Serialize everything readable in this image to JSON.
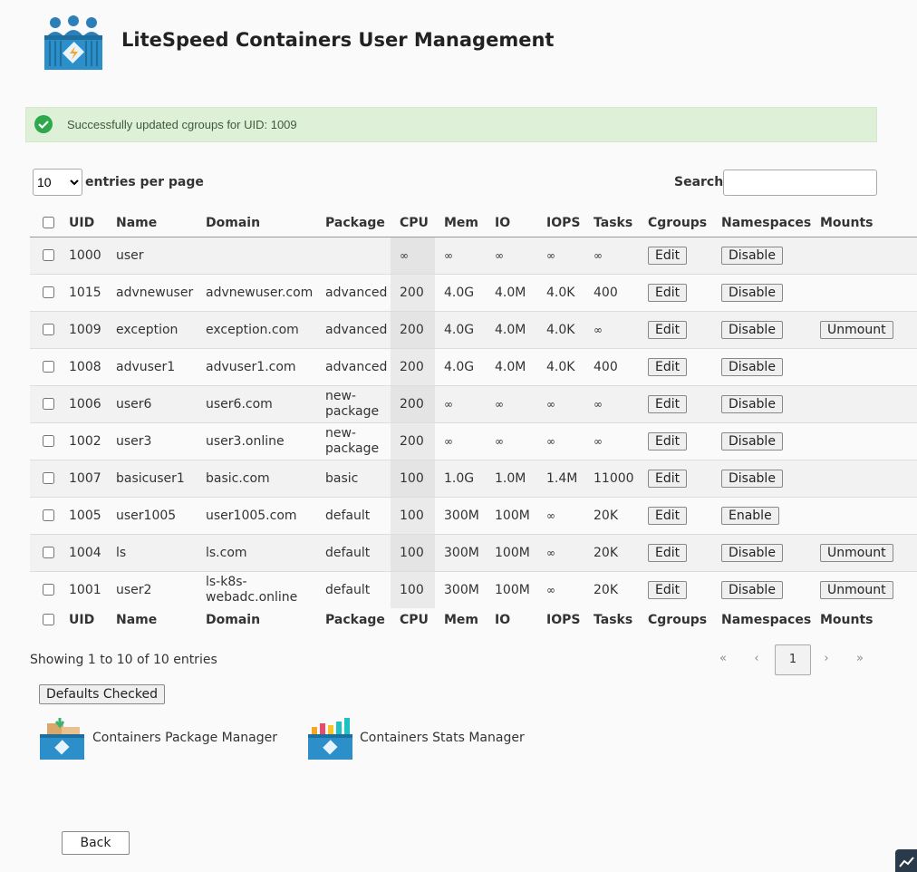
{
  "header": {
    "title": "LiteSpeed Containers User Management"
  },
  "alert": {
    "message": "Successfully updated cgroups for UID: 1009"
  },
  "controls": {
    "page_length": "10",
    "entries_label": "entries per page",
    "search_label": "Search:"
  },
  "table": {
    "columns": [
      "UID",
      "Name",
      "Domain",
      "Package",
      "CPU",
      "Mem",
      "IO",
      "IOPS",
      "Tasks",
      "Cgroups",
      "Namespaces",
      "Mounts"
    ],
    "rows": [
      {
        "uid": 1000,
        "name": "user",
        "cpu": "∞",
        "mem": "∞",
        "io": "∞",
        "iops": "∞",
        "tasks": "∞",
        "cgroups": "Edit",
        "namespaces": "Disable"
      },
      {
        "uid": 1015,
        "name": "advnewuser",
        "domain": "advnewuser.com",
        "package": "advanced",
        "cpu": 200,
        "mem": "4.0G",
        "io": "4.0M",
        "iops": "4.0K",
        "tasks": 400,
        "cgroups": "Edit",
        "namespaces": "Disable"
      },
      {
        "uid": 1009,
        "name": "exception",
        "domain": "exception.com",
        "package": "advanced",
        "cpu": 200,
        "mem": "4.0G",
        "io": "4.0M",
        "iops": "4.0K",
        "tasks": "∞",
        "cgroups": "Edit",
        "namespaces": "Disable",
        "mounts": "Unmount"
      },
      {
        "uid": 1008,
        "name": "advuser1",
        "domain": "advuser1.com",
        "package": "advanced",
        "cpu": 200,
        "mem": "4.0G",
        "io": "4.0M",
        "iops": "4.0K",
        "tasks": 400,
        "cgroups": "Edit",
        "namespaces": "Disable"
      },
      {
        "uid": 1006,
        "name": "user6",
        "domain": "user6.com",
        "package": "new-package",
        "cpu": 200,
        "mem": "∞",
        "io": "∞",
        "iops": "∞",
        "tasks": "∞",
        "cgroups": "Edit",
        "namespaces": "Disable"
      },
      {
        "uid": 1002,
        "name": "user3",
        "domain": "user3.online",
        "package": "new-package",
        "cpu": 200,
        "mem": "∞",
        "io": "∞",
        "iops": "∞",
        "tasks": "∞",
        "cgroups": "Edit",
        "namespaces": "Disable"
      },
      {
        "uid": 1007,
        "name": "basicuser1",
        "domain": "basic.com",
        "package": "basic",
        "cpu": 100,
        "mem": "1.0G",
        "io": "1.0M",
        "iops": "1.4M",
        "tasks": 11000,
        "cgroups": "Edit",
        "namespaces": "Disable"
      },
      {
        "uid": 1005,
        "name": "user1005",
        "domain": "user1005.com",
        "package": "default",
        "cpu": 100,
        "mem": "300M",
        "io": "100M",
        "iops": "∞",
        "tasks": "20K",
        "cgroups": "Edit",
        "namespaces": "Enable"
      },
      {
        "uid": 1004,
        "name": "ls",
        "domain": "ls.com",
        "package": "default",
        "cpu": 100,
        "mem": "300M",
        "io": "100M",
        "iops": "∞",
        "tasks": "20K",
        "cgroups": "Edit",
        "namespaces": "Disable",
        "mounts": "Unmount"
      },
      {
        "uid": 1001,
        "name": "user2",
        "domain": "ls-k8s-webadc.online",
        "package": "default",
        "cpu": 100,
        "mem": "300M",
        "io": "100M",
        "iops": "∞",
        "tasks": "20K",
        "cgroups": "Edit",
        "namespaces": "Disable",
        "mounts": "Unmount"
      }
    ]
  },
  "info": "Showing 1 to 10 of 10 entries",
  "pagination": [
    "«",
    "‹",
    "1",
    "›",
    "»"
  ],
  "defaults_button": "Defaults Checked",
  "links": [
    "Containers Package Manager",
    "Containers Stats Manager"
  ],
  "back_button": "Back"
}
